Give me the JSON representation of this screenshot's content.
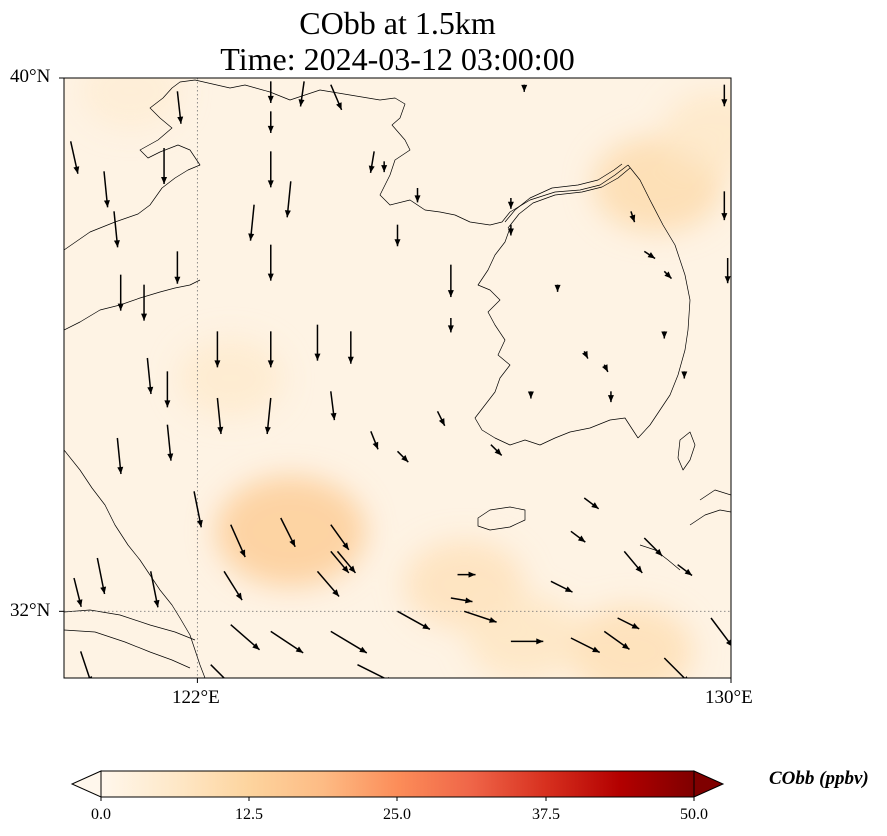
{
  "title": {
    "line1": "CObb at 1.5km",
    "line2": "Time: 2024-03-12 03:00:00"
  },
  "axes": {
    "lat_ticks": [
      "40°N",
      "32°N"
    ],
    "lon_ticks": [
      "122°E",
      "130°E"
    ],
    "lat_range": [
      31,
      40
    ],
    "lon_range": [
      120,
      130
    ],
    "gridlines": "dotted"
  },
  "colorbar": {
    "label": "CObb (ppbv)",
    "ticks": [
      "0.0",
      "12.5",
      "25.0",
      "37.5",
      "50.0"
    ],
    "range": [
      0,
      50
    ],
    "extend": "both",
    "cmap": "OrRd",
    "colors": [
      "#fff7ec",
      "#fee8c8",
      "#fdd49e",
      "#fdbb84",
      "#fc8d59",
      "#ef6548",
      "#d7301f",
      "#b30000",
      "#7f0000"
    ]
  },
  "colors": {
    "background_field": "#fef3e4",
    "coastline": "#000000",
    "grid": "#808080",
    "arrow": "#000000"
  },
  "concentration_hotspots": [
    {
      "lon": 123.4,
      "lat": 33.2,
      "value": 14
    },
    {
      "lon": 126.0,
      "lat": 32.4,
      "value": 8
    },
    {
      "lon": 128.5,
      "lat": 31.4,
      "value": 9
    },
    {
      "lon": 128.9,
      "lat": 38.4,
      "value": 10
    },
    {
      "lon": 126.9,
      "lat": 31.6,
      "value": 7
    },
    {
      "lon": 122.5,
      "lat": 35.5,
      "value": 5
    },
    {
      "lon": 121.0,
      "lat": 39.8,
      "value": 4
    },
    {
      "lon": 129.8,
      "lat": 39.2,
      "value": 6
    }
  ],
  "wind_vectors": [
    {
      "lon": 120.1,
      "lat": 39.05,
      "u": 0.2,
      "v": -0.9
    },
    {
      "lon": 120.6,
      "lat": 38.6,
      "u": 0.1,
      "v": -1.0
    },
    {
      "lon": 120.75,
      "lat": 38.0,
      "u": 0.1,
      "v": -1.0
    },
    {
      "lon": 121.7,
      "lat": 39.8,
      "u": 0.1,
      "v": -0.9
    },
    {
      "lon": 121.5,
      "lat": 38.95,
      "u": 0.0,
      "v": -1.0
    },
    {
      "lon": 121.7,
      "lat": 37.4,
      "u": 0.0,
      "v": -0.9
    },
    {
      "lon": 120.85,
      "lat": 37.05,
      "u": 0.0,
      "v": -1.0
    },
    {
      "lon": 121.2,
      "lat": 36.9,
      "u": 0.0,
      "v": -1.0
    },
    {
      "lon": 123.1,
      "lat": 39.95,
      "u": 0.0,
      "v": -0.6
    },
    {
      "lon": 123.6,
      "lat": 39.95,
      "u": -0.1,
      "v": -0.7
    },
    {
      "lon": 124.0,
      "lat": 39.9,
      "u": 0.3,
      "v": -0.7
    },
    {
      "lon": 123.1,
      "lat": 39.5,
      "u": 0.0,
      "v": -0.6
    },
    {
      "lon": 123.1,
      "lat": 38.9,
      "u": 0.0,
      "v": -1.0
    },
    {
      "lon": 123.4,
      "lat": 38.45,
      "u": -0.1,
      "v": -1.0
    },
    {
      "lon": 122.85,
      "lat": 38.1,
      "u": -0.1,
      "v": -1.0
    },
    {
      "lon": 123.1,
      "lat": 37.5,
      "u": 0.0,
      "v": -1.0
    },
    {
      "lon": 124.65,
      "lat": 38.9,
      "u": -0.1,
      "v": -0.6
    },
    {
      "lon": 124.8,
      "lat": 38.75,
      "u": 0.0,
      "v": -0.3
    },
    {
      "lon": 125.3,
      "lat": 38.35,
      "u": 0.0,
      "v": -0.4
    },
    {
      "lon": 125.0,
      "lat": 37.8,
      "u": 0.0,
      "v": -0.6
    },
    {
      "lon": 125.8,
      "lat": 37.2,
      "u": 0.0,
      "v": -0.9
    },
    {
      "lon": 125.8,
      "lat": 36.4,
      "u": 0.0,
      "v": -0.4
    },
    {
      "lon": 126.7,
      "lat": 38.2,
      "u": 0.0,
      "v": -0.3
    },
    {
      "lon": 126.7,
      "lat": 37.8,
      "u": 0.0,
      "v": -0.3
    },
    {
      "lon": 126.9,
      "lat": 39.9,
      "u": 0.0,
      "v": -0.2
    },
    {
      "lon": 129.9,
      "lat": 39.9,
      "u": 0.0,
      "v": -0.6
    },
    {
      "lon": 128.5,
      "lat": 38.0,
      "u": 0.1,
      "v": -0.3
    },
    {
      "lon": 128.7,
      "lat": 37.4,
      "u": 0.3,
      "v": -0.2
    },
    {
      "lon": 129.0,
      "lat": 37.1,
      "u": 0.2,
      "v": -0.2
    },
    {
      "lon": 129.9,
      "lat": 38.3,
      "u": 0.0,
      "v": -0.8
    },
    {
      "lon": 129.95,
      "lat": 37.3,
      "u": 0.0,
      "v": -0.7
    },
    {
      "lon": 127.4,
      "lat": 36.9,
      "u": 0.0,
      "v": -0.2
    },
    {
      "lon": 127.8,
      "lat": 35.9,
      "u": 0.1,
      "v": -0.2
    },
    {
      "lon": 128.1,
      "lat": 35.7,
      "u": 0.1,
      "v": -0.2
    },
    {
      "lon": 127.0,
      "lat": 35.3,
      "u": 0.0,
      "v": -0.2
    },
    {
      "lon": 128.2,
      "lat": 35.3,
      "u": 0.0,
      "v": -0.3
    },
    {
      "lon": 129.0,
      "lat": 36.2,
      "u": 0.0,
      "v": -0.2
    },
    {
      "lon": 129.3,
      "lat": 35.6,
      "u": 0.0,
      "v": -0.2
    },
    {
      "lon": 123.1,
      "lat": 36.2,
      "u": 0.0,
      "v": -1.0
    },
    {
      "lon": 123.8,
      "lat": 36.3,
      "u": 0.0,
      "v": -1.0
    },
    {
      "lon": 124.3,
      "lat": 36.2,
      "u": 0.0,
      "v": -0.9
    },
    {
      "lon": 122.3,
      "lat": 36.2,
      "u": 0.0,
      "v": -1.0
    },
    {
      "lon": 121.25,
      "lat": 35.8,
      "u": 0.1,
      "v": -1.0
    },
    {
      "lon": 121.55,
      "lat": 35.6,
      "u": 0.0,
      "v": -1.0
    },
    {
      "lon": 122.3,
      "lat": 35.2,
      "u": 0.1,
      "v": -1.0
    },
    {
      "lon": 123.1,
      "lat": 35.2,
      "u": -0.1,
      "v": -1.0
    },
    {
      "lon": 124.0,
      "lat": 35.3,
      "u": 0.1,
      "v": -0.8
    },
    {
      "lon": 120.8,
      "lat": 34.6,
      "u": 0.1,
      "v": -1.0
    },
    {
      "lon": 121.55,
      "lat": 34.8,
      "u": 0.1,
      "v": -1.0
    },
    {
      "lon": 124.6,
      "lat": 34.7,
      "u": 0.2,
      "v": -0.5
    },
    {
      "lon": 125.0,
      "lat": 34.4,
      "u": 0.3,
      "v": -0.3
    },
    {
      "lon": 125.6,
      "lat": 35.0,
      "u": 0.2,
      "v": -0.4
    },
    {
      "lon": 126.4,
      "lat": 34.5,
      "u": 0.3,
      "v": -0.3
    },
    {
      "lon": 127.6,
      "lat": 33.2,
      "u": 0.4,
      "v": -0.3
    },
    {
      "lon": 127.8,
      "lat": 33.7,
      "u": 0.4,
      "v": -0.3
    },
    {
      "lon": 121.95,
      "lat": 33.8,
      "u": 0.2,
      "v": -1.0
    },
    {
      "lon": 122.5,
      "lat": 33.3,
      "u": 0.4,
      "v": -0.9
    },
    {
      "lon": 123.25,
      "lat": 33.4,
      "u": 0.4,
      "v": -0.8
    },
    {
      "lon": 124.0,
      "lat": 33.3,
      "u": 0.5,
      "v": -0.7
    },
    {
      "lon": 124.1,
      "lat": 32.9,
      "u": 0.5,
      "v": -0.6
    },
    {
      "lon": 125.9,
      "lat": 32.55,
      "u": 0.5,
      "v": 0.0
    },
    {
      "lon": 125.8,
      "lat": 32.2,
      "u": 0.6,
      "v": -0.1
    },
    {
      "lon": 127.3,
      "lat": 32.45,
      "u": 0.6,
      "v": -0.3
    },
    {
      "lon": 120.5,
      "lat": 32.8,
      "u": 0.2,
      "v": -1.0
    },
    {
      "lon": 121.3,
      "lat": 32.6,
      "u": 0.2,
      "v": -1.0
    },
    {
      "lon": 122.4,
      "lat": 32.6,
      "u": 0.5,
      "v": -0.8
    },
    {
      "lon": 123.8,
      "lat": 32.6,
      "u": 0.6,
      "v": -0.7
    },
    {
      "lon": 120.15,
      "lat": 32.5,
      "u": 0.2,
      "v": -0.8
    },
    {
      "lon": 124.0,
      "lat": 32.9,
      "u": 0.5,
      "v": -0.6
    },
    {
      "lon": 125.0,
      "lat": 32.0,
      "u": 0.9,
      "v": -0.5
    },
    {
      "lon": 126.0,
      "lat": 32.0,
      "u": 0.9,
      "v": -0.3
    },
    {
      "lon": 126.7,
      "lat": 31.55,
      "u": 0.9,
      "v": 0.0
    },
    {
      "lon": 127.6,
      "lat": 31.6,
      "u": 0.8,
      "v": -0.4
    },
    {
      "lon": 128.1,
      "lat": 31.7,
      "u": 0.7,
      "v": -0.5
    },
    {
      "lon": 128.3,
      "lat": 31.9,
      "u": 0.6,
      "v": -0.3
    },
    {
      "lon": 128.4,
      "lat": 32.9,
      "u": 0.5,
      "v": -0.6
    },
    {
      "lon": 128.7,
      "lat": 33.1,
      "u": 0.5,
      "v": -0.5
    },
    {
      "lon": 129.2,
      "lat": 32.7,
      "u": 0.4,
      "v": -0.3
    },
    {
      "lon": 129.7,
      "lat": 31.9,
      "u": 0.6,
      "v": -0.8
    },
    {
      "lon": 129.0,
      "lat": 31.3,
      "u": 0.7,
      "v": -0.7
    },
    {
      "lon": 122.5,
      "lat": 31.8,
      "u": 0.8,
      "v": -0.7
    },
    {
      "lon": 123.1,
      "lat": 31.7,
      "u": 0.9,
      "v": -0.6
    },
    {
      "lon": 124.0,
      "lat": 31.7,
      "u": 1.0,
      "v": -0.6
    },
    {
      "lon": 124.4,
      "lat": 31.2,
      "u": 1.0,
      "v": -0.5
    },
    {
      "lon": 122.2,
      "lat": 31.2,
      "u": 0.8,
      "v": -0.8
    },
    {
      "lon": 120.25,
      "lat": 31.4,
      "u": 0.3,
      "v": -0.9
    }
  ]
}
